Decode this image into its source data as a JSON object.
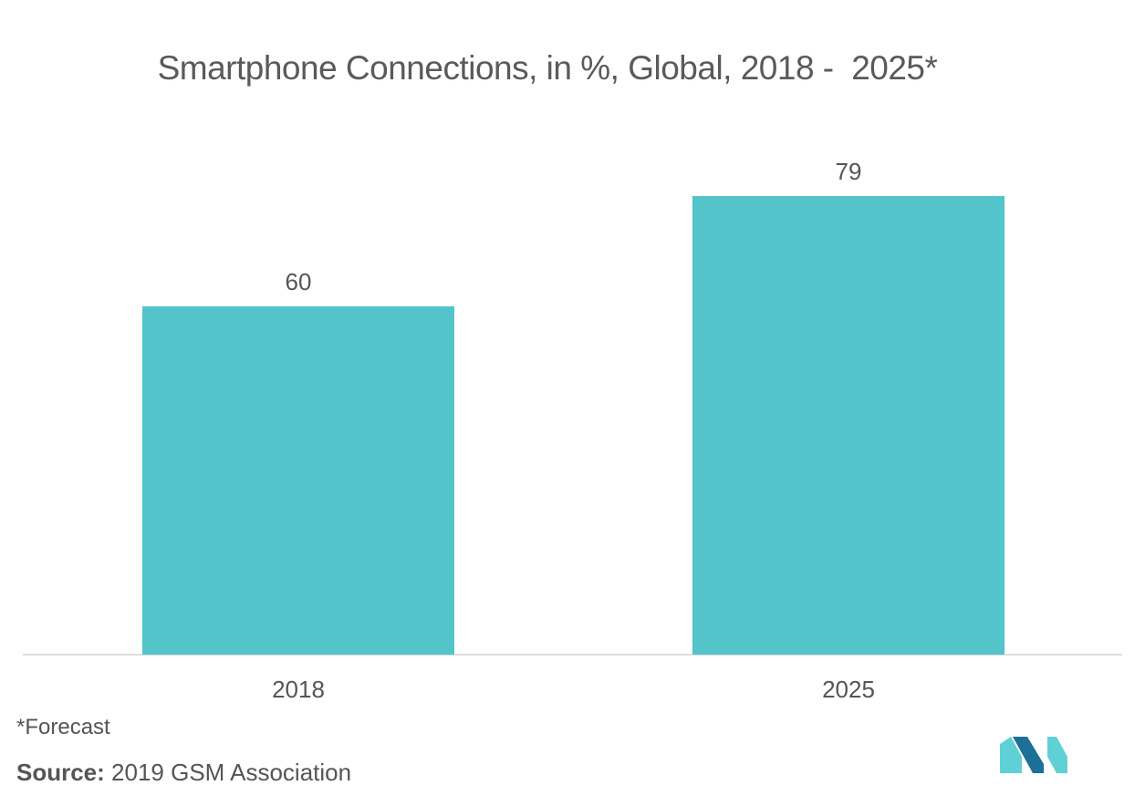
{
  "chart_data": {
    "type": "bar",
    "title": "Smartphone Connections, in %, Global, 2018 -  2025*",
    "categories": [
      "2018",
      "2025"
    ],
    "values": [
      60,
      79
    ],
    "data_labels": [
      "60",
      "79"
    ],
    "xlabel": "",
    "ylabel": "",
    "ylim": [
      0,
      100
    ],
    "grid": false,
    "bar_color": "#52c4ca"
  },
  "footnote": "*Forecast",
  "source": {
    "label": "Source:",
    "text": " 2019 GSM Association"
  },
  "logo": {
    "icon": "mordor-intelligence-logo-icon",
    "colors": [
      "#1e6f97",
      "#5fd0d6"
    ]
  }
}
